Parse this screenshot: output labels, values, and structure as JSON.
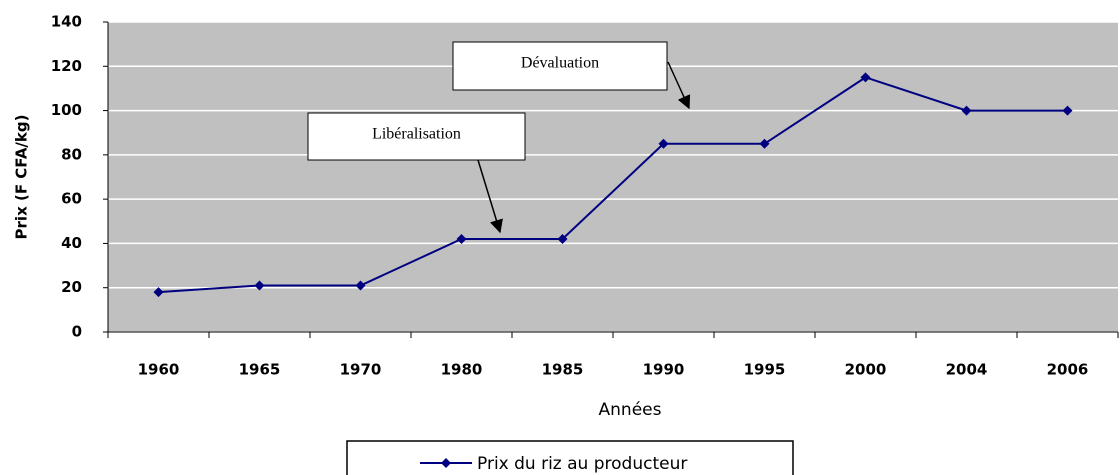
{
  "chart_data": {
    "type": "line",
    "x_label": "Années",
    "y_label": "Prix (F CFA/kg)",
    "categories": [
      "1960",
      "1965",
      "1970",
      "1980",
      "1985",
      "1990",
      "1995",
      "2000",
      "2004",
      "2006"
    ],
    "series": [
      {
        "name": "Prix du riz au producteur",
        "color": "#000080",
        "values": [
          18,
          21,
          21,
          42,
          42,
          85,
          85,
          115,
          100,
          100
        ]
      }
    ],
    "ylim": [
      0,
      140
    ],
    "yticks": [
      0,
      20,
      40,
      60,
      80,
      100,
      120,
      140
    ],
    "grid": true,
    "plot_background": "#c0c0c0",
    "legend": "bottom",
    "annotations": [
      {
        "text": "Dévaluation"
      },
      {
        "text": "Libéralisation"
      }
    ]
  }
}
